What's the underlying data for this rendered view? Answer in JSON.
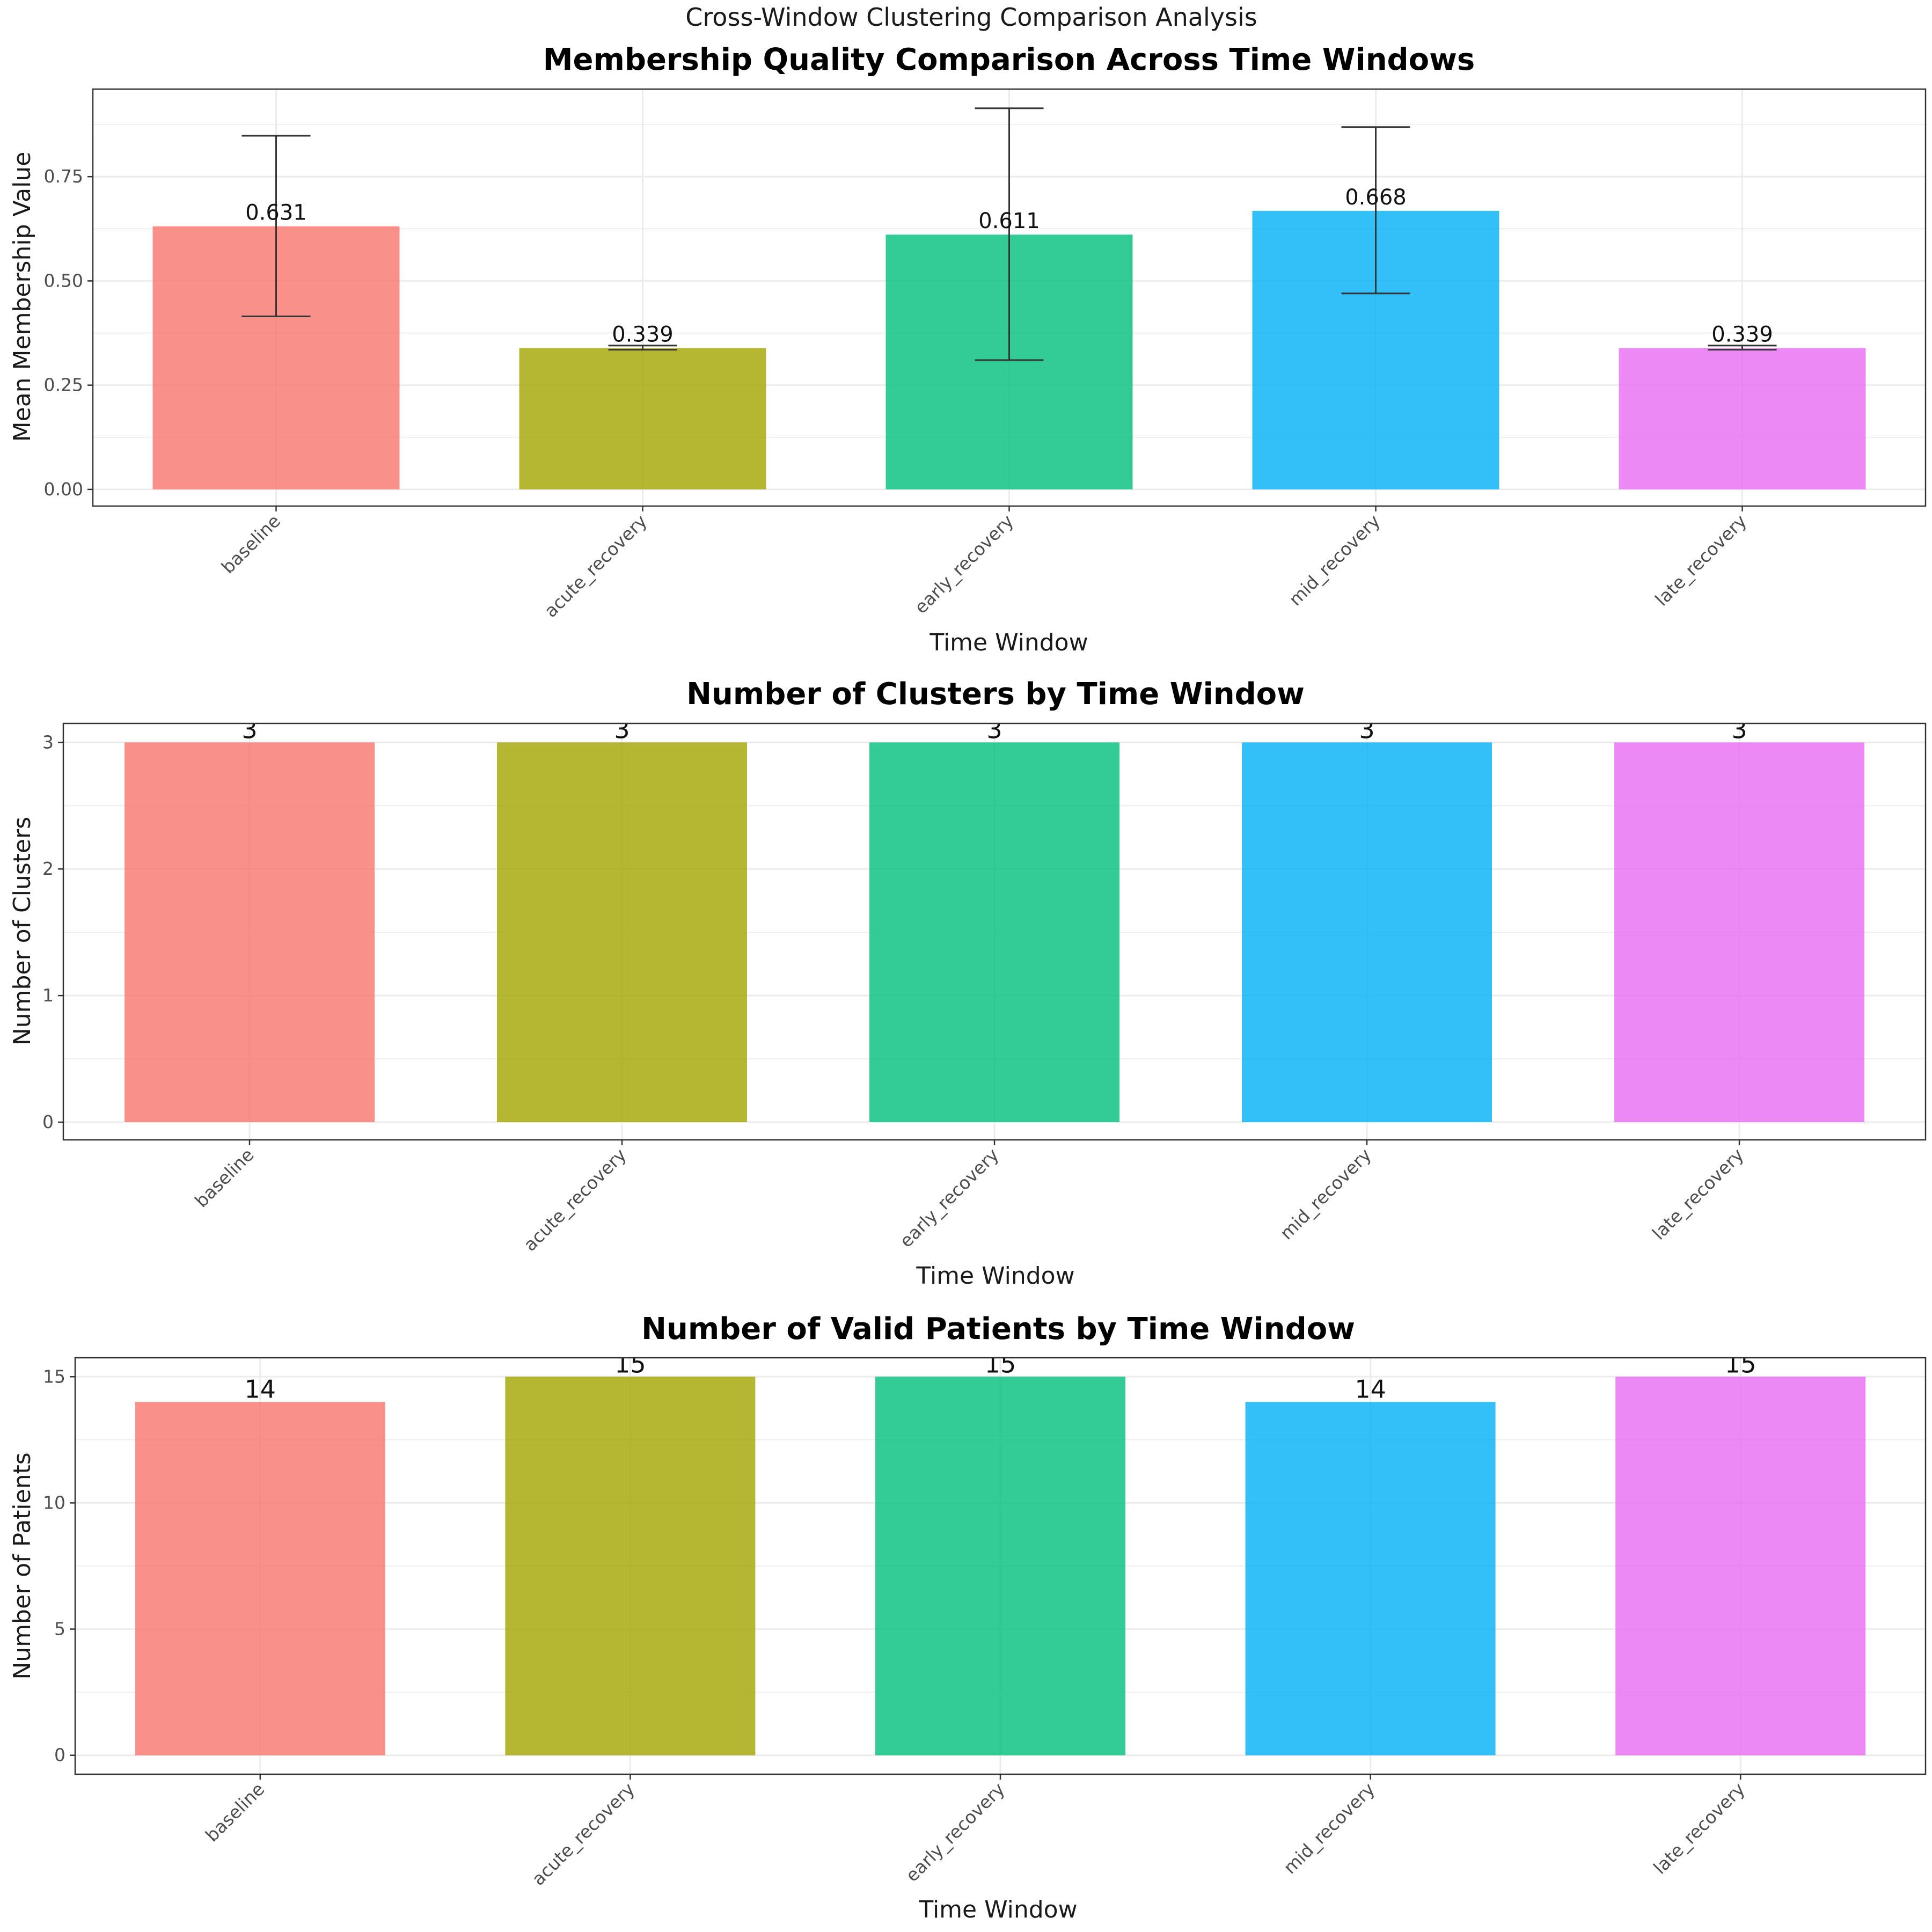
{
  "suptitle": "Cross-Window Clustering Comparison Analysis",
  "colors": {
    "baseline": "#F8766D",
    "acute_recovery": "#A3A500",
    "early_recovery": "#00BF7D",
    "mid_recovery": "#00B0F6",
    "late_recovery": "#E76BF3",
    "errorbar": "#333333",
    "grid": "#EBEBEB",
    "panel_border": "#333333"
  },
  "chart_data": [
    {
      "type": "bar",
      "title": "Membership Quality Comparison Across Time Windows",
      "xlabel": "Time Window",
      "ylabel": "Mean Membership Value",
      "categories": [
        "baseline",
        "acute_recovery",
        "early_recovery",
        "mid_recovery",
        "late_recovery"
      ],
      "values": [
        0.631,
        0.339,
        0.611,
        0.668,
        0.339
      ],
      "value_labels": [
        "0.631",
        "0.339",
        "0.611",
        "0.668",
        "0.339"
      ],
      "error_low": [
        0.415,
        0.335,
        0.31,
        0.47,
        0.335
      ],
      "error_high": [
        0.848,
        0.345,
        0.914,
        0.869,
        0.345
      ],
      "ylim": [
        -0.04,
        0.96
      ],
      "yticks": [
        0,
        0.25,
        0.5,
        0.75
      ],
      "ytick_labels": [
        "0.00",
        "0.25",
        "0.50",
        "0.75"
      ],
      "grid": true,
      "legend": "none"
    },
    {
      "type": "bar",
      "title": "Number of Clusters by Time Window",
      "xlabel": "Time Window",
      "ylabel": "Number of Clusters",
      "categories": [
        "baseline",
        "acute_recovery",
        "early_recovery",
        "mid_recovery",
        "late_recovery"
      ],
      "values": [
        3,
        3,
        3,
        3,
        3
      ],
      "value_labels": [
        "3",
        "3",
        "3",
        "3",
        "3"
      ],
      "ylim": [
        -0.14,
        3.15
      ],
      "yticks": [
        0,
        1,
        2,
        3
      ],
      "ytick_labels": [
        "0",
        "1",
        "2",
        "3"
      ],
      "grid": true,
      "legend": "none"
    },
    {
      "type": "bar",
      "title": "Number of Valid Patients by Time Window",
      "xlabel": "Time Window",
      "ylabel": "Number of Patients",
      "categories": [
        "baseline",
        "acute_recovery",
        "early_recovery",
        "mid_recovery",
        "late_recovery"
      ],
      "values": [
        14,
        15,
        15,
        14,
        15
      ],
      "value_labels": [
        "14",
        "15",
        "15",
        "14",
        "15"
      ],
      "ylim": [
        -0.75,
        15.75
      ],
      "yticks": [
        0,
        5,
        10,
        15
      ],
      "ytick_labels": [
        "0",
        "5",
        "10",
        "15"
      ],
      "grid": true,
      "legend": "none"
    }
  ]
}
